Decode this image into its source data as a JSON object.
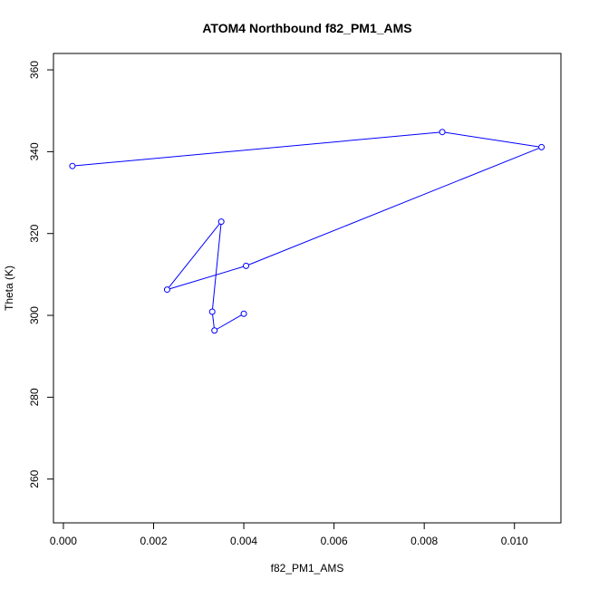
{
  "chart_data": {
    "type": "line",
    "title": "ATOM4 Northbound f82_PM1_AMS",
    "xlabel": "f82_PM1_AMS",
    "ylabel": "Theta (K)",
    "xlim": [
      -0.00022,
      0.01103
    ],
    "ylim": [
      249.3,
      364.0
    ],
    "xticks": [
      "0.000",
      "0.002",
      "0.004",
      "0.006",
      "0.008",
      "0.010"
    ],
    "xtick_values": [
      0.0,
      0.002,
      0.004,
      0.006,
      0.008,
      0.01
    ],
    "yticks": [
      "260",
      "280",
      "300",
      "320",
      "340",
      "360"
    ],
    "ytick_values": [
      260,
      280,
      300,
      320,
      340,
      360
    ],
    "grid": false,
    "series": [
      {
        "color": "#0000ff",
        "marker": "open-circle",
        "x": [
          0.0002,
          0.0084,
          0.0106,
          0.00405,
          0.0023,
          0.0035,
          0.0033,
          0.00335,
          0.004
        ],
        "y": [
          336.5,
          344.8,
          341.1,
          312.1,
          306.3,
          322.9,
          300.9,
          296.3,
          300.4
        ]
      }
    ]
  }
}
